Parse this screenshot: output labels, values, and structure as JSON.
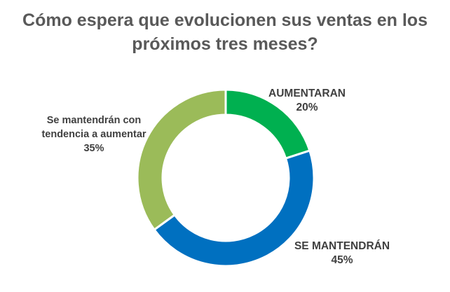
{
  "chart_data": {
    "type": "pie",
    "subtype": "donut",
    "title_lines": [
      "Cómo espera que evolucionen sus ventas en los",
      "próximos tres meses?"
    ],
    "categories": [
      "AUMENTARAN",
      "SE MANTENDRÁN",
      "Se mantendrán con tendencia a aumentar"
    ],
    "values": [
      20,
      45,
      35
    ],
    "value_labels": [
      "20%",
      "45%",
      "35%"
    ],
    "label_lines": [
      [
        "AUMENTARAN"
      ],
      [
        "SE MANTENDRÁN"
      ],
      [
        "Se mantendrán con",
        "tendencia a aumentar"
      ]
    ],
    "colors": [
      "#00B050",
      "#0070C0",
      "#9BBB59"
    ],
    "legend": "none"
  }
}
